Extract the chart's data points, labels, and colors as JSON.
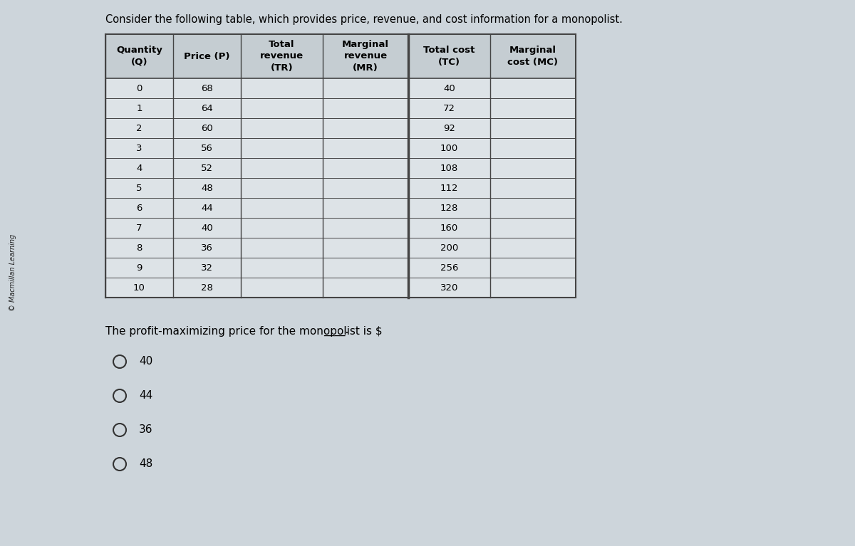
{
  "title": "Consider the following table, which provides price, revenue, and cost information for a monopolist.",
  "watermark": "© Macmillan Learning",
  "col_headers_line1": [
    "Quantity",
    "Price (P)",
    "Total",
    "Marginal",
    "Total cost",
    "Marginal"
  ],
  "col_headers_line2": [
    "(Q)",
    "",
    "revenue",
    "revenue",
    "(TC)",
    "cost (MC)"
  ],
  "col_headers_line3": [
    "",
    "",
    "(TR)",
    "(MR)",
    "",
    ""
  ],
  "quantities": [
    0,
    1,
    2,
    3,
    4,
    5,
    6,
    7,
    8,
    9,
    10
  ],
  "prices": [
    68,
    64,
    60,
    56,
    52,
    48,
    44,
    40,
    36,
    32,
    28
  ],
  "total_costs": [
    40,
    72,
    92,
    100,
    108,
    112,
    128,
    160,
    200,
    256,
    320
  ],
  "question_text": "The profit-maximizing price for the monopolist is $",
  "question_blank": "____",
  "question_dot": ".",
  "radio_options": [
    "40",
    "44",
    "36",
    "48"
  ],
  "bg_color": "#cdd5db",
  "table_bg": "#dde3e7",
  "table_border_color": "#444444",
  "title_fontsize": 10.5,
  "table_header_fontsize": 9.5,
  "table_data_fontsize": 9.5,
  "question_fontsize": 11,
  "radio_fontsize": 11,
  "watermark_fontsize": 7
}
